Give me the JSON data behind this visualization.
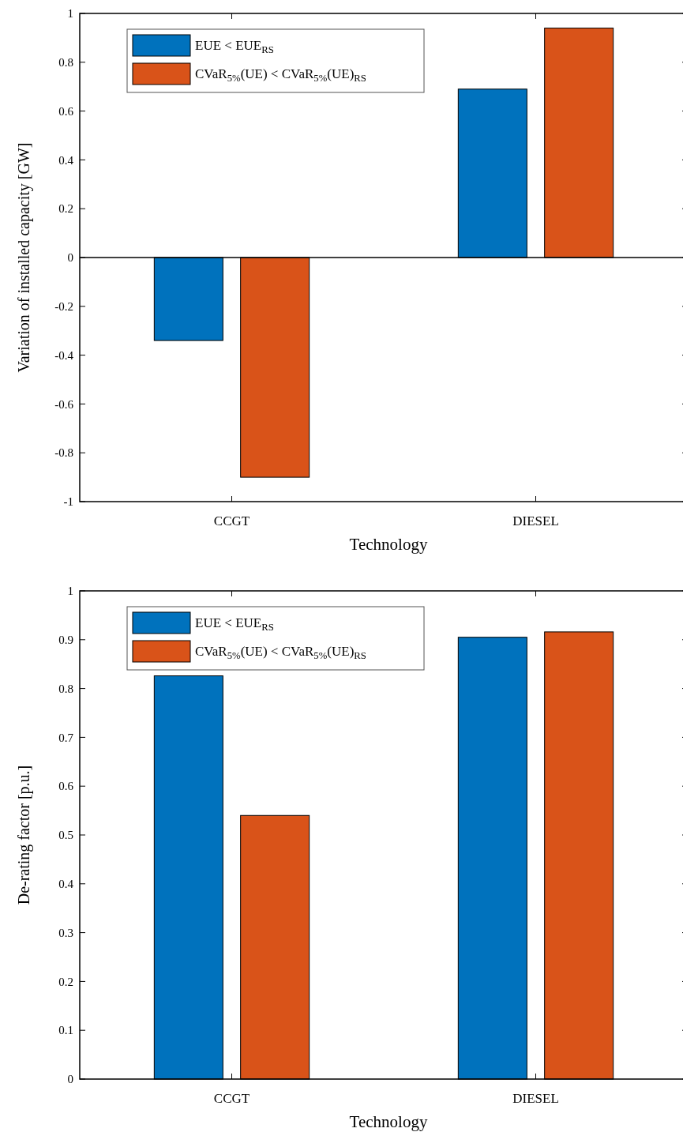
{
  "chart_data": [
    {
      "type": "bar",
      "categories": [
        "CCGT",
        "DIESEL"
      ],
      "xlabel": "Technology",
      "ylabel": "Variation of installed capacity [GW]",
      "ylim": [
        -1,
        1
      ],
      "yticks": [
        -1,
        -0.8,
        -0.6,
        -0.4,
        -0.2,
        0,
        0.2,
        0.4,
        0.6,
        0.8,
        1
      ],
      "ref_lines": [
        {
          "axis": "y",
          "value": 0,
          "color": "#000000"
        }
      ],
      "legend": "top left",
      "series": [
        {
          "name": "EUE < EUE$_{RS}$",
          "color": "#0072bd",
          "values": [
            -0.34,
            0.69
          ]
        },
        {
          "name": "CVaR$_{5%}$(UE) < CVaR$_{5%}$(UE)$_{RS}$",
          "color": "#d95319",
          "values": [
            -0.9,
            0.94
          ]
        }
      ]
    },
    {
      "type": "bar",
      "categories": [
        "CCGT",
        "DIESEL"
      ],
      "xlabel": "Technology",
      "ylabel": "De-rating factor [p.u.]",
      "ylim": [
        0,
        1
      ],
      "yticks": [
        0,
        0.1,
        0.2,
        0.3,
        0.4,
        0.5,
        0.6,
        0.7,
        0.8,
        0.9,
        1
      ],
      "grid": false,
      "legend": "top left",
      "series": [
        {
          "name": "EUE < EUE$_{RS}$",
          "color": "#0072bd",
          "values": [
            0.826,
            0.905
          ]
        },
        {
          "name": "CVaR$_{5%}$(UE) < CVaR$_{5%}$(UE)$_{RS}$",
          "color": "#d95319",
          "values": [
            0.54,
            0.916
          ]
        }
      ]
    }
  ]
}
